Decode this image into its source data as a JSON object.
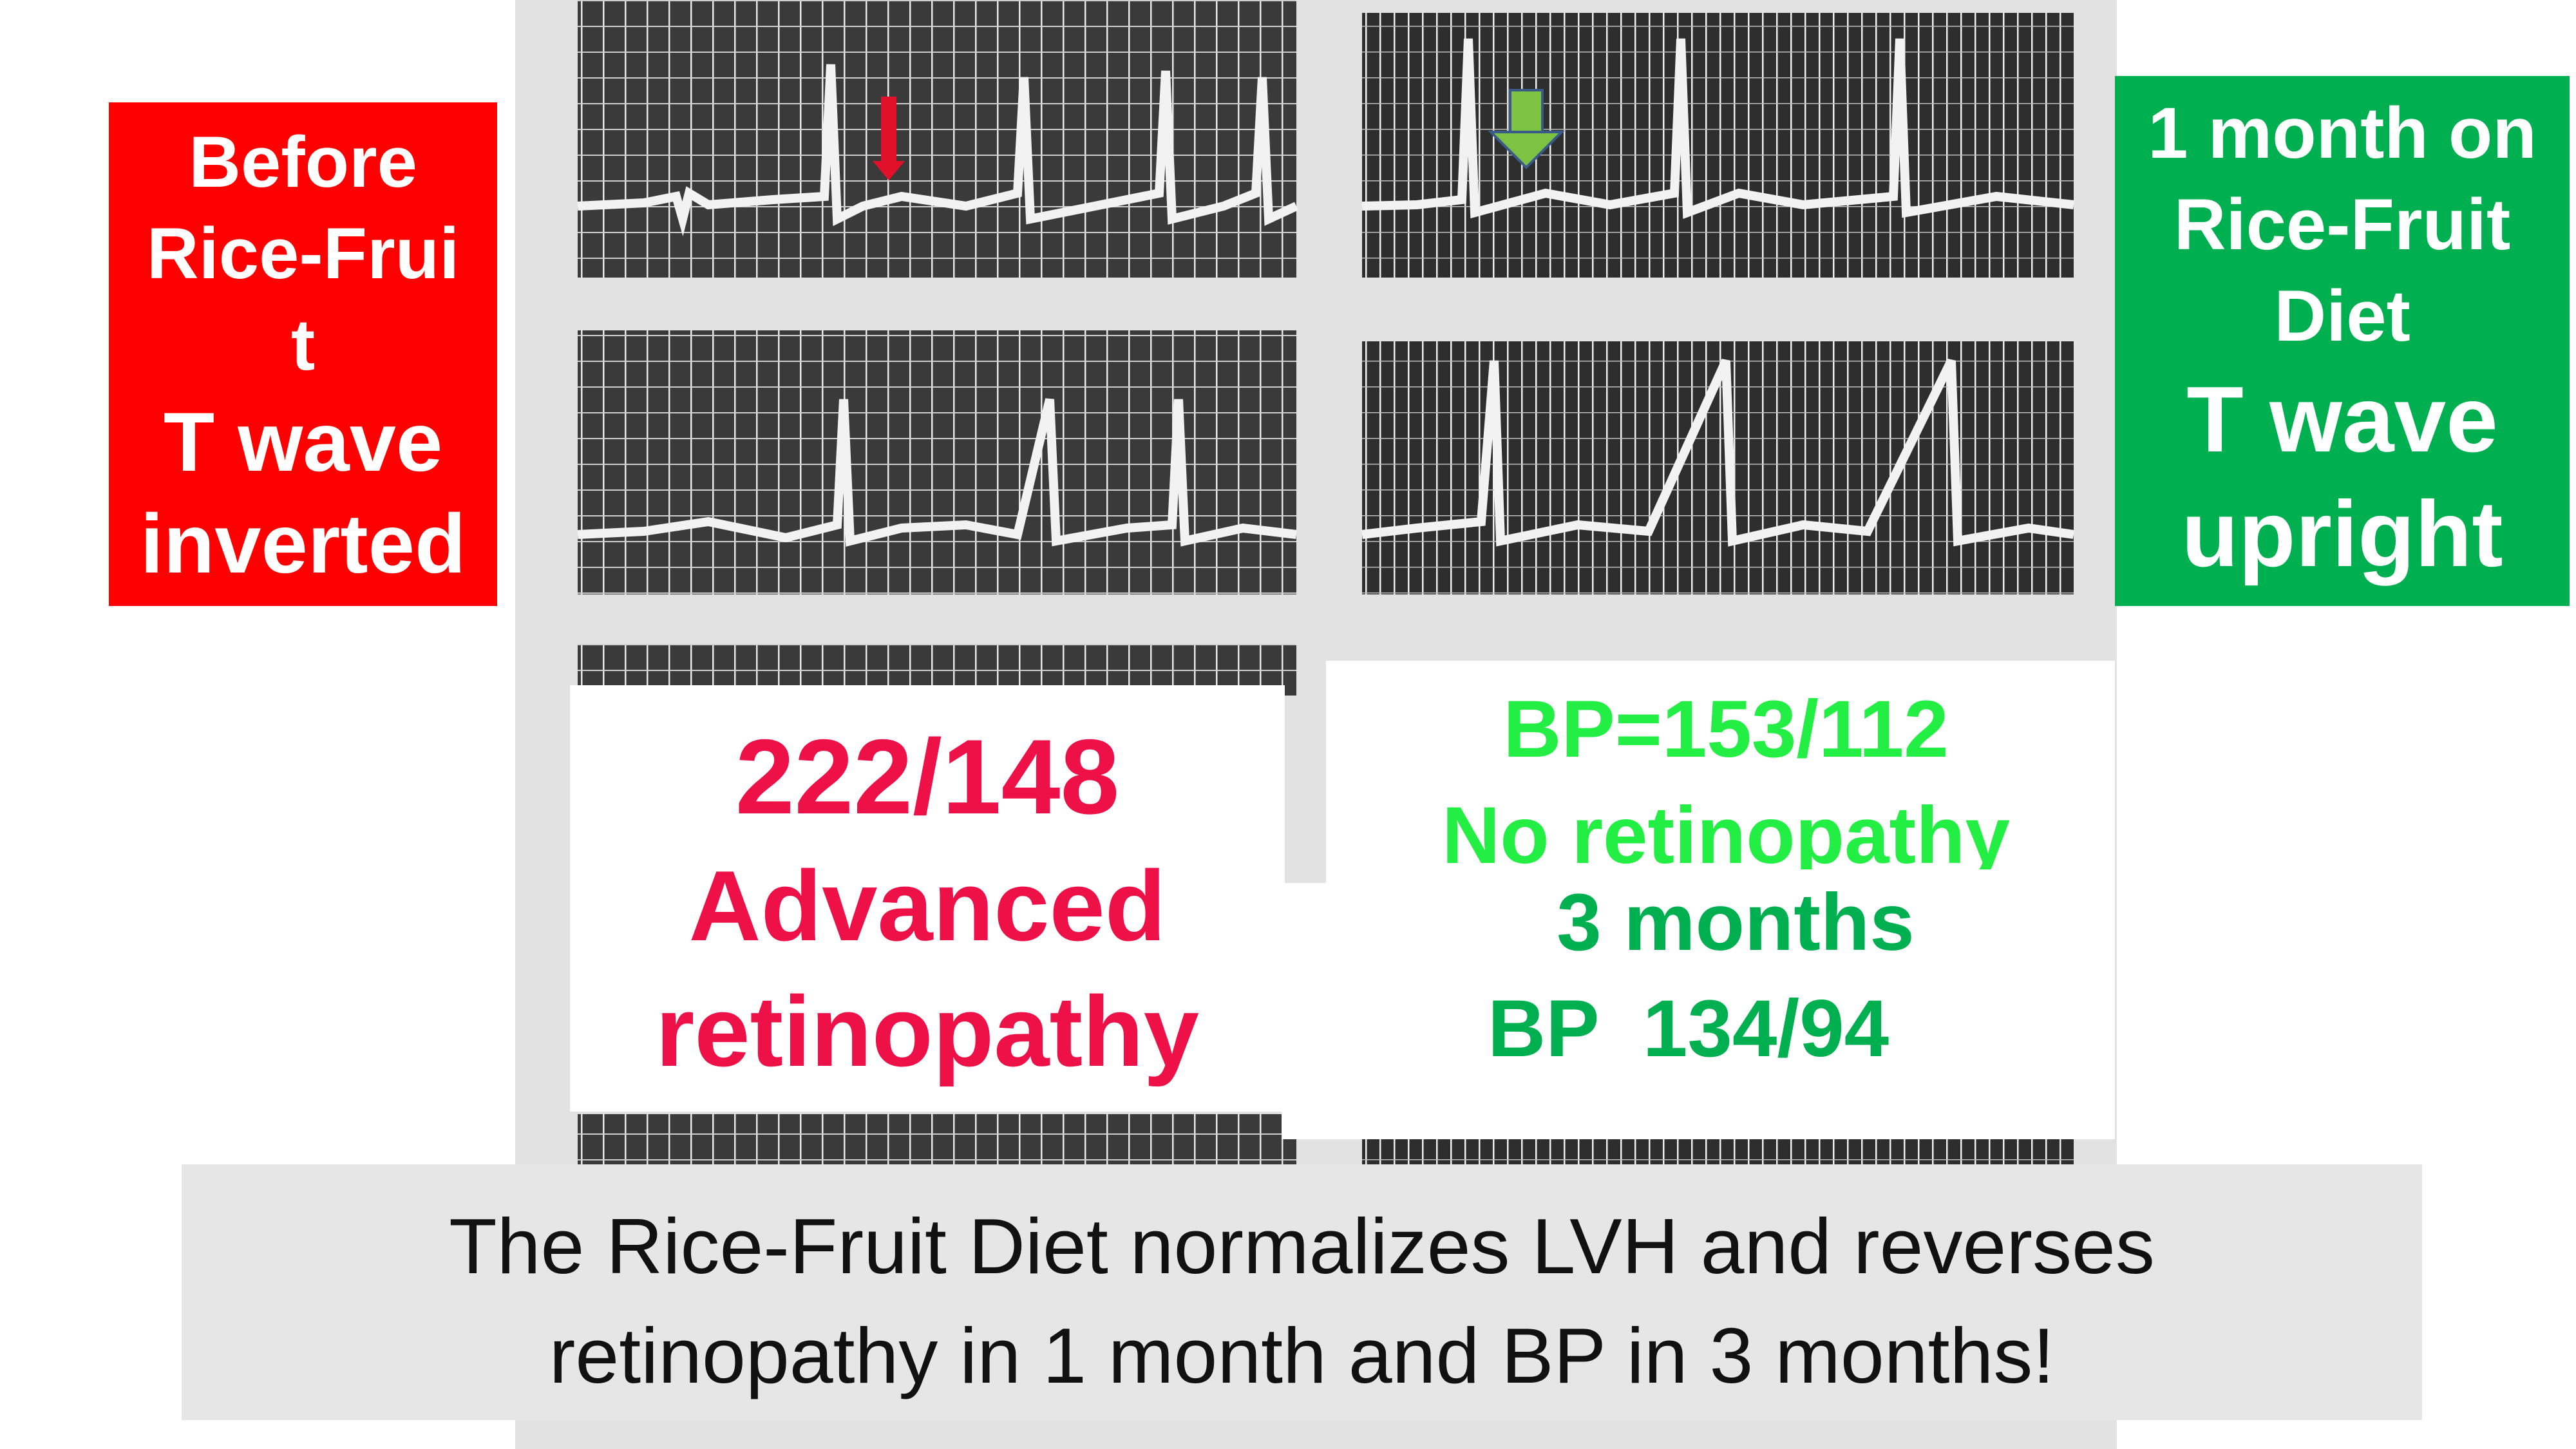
{
  "left_box": {
    "lines": [
      "Before",
      "Rice-Frui",
      "t",
      "T wave",
      "inverted"
    ]
  },
  "right_box": {
    "lines": [
      "1 month on",
      "Rice-Fruit",
      "Diet",
      "T wave",
      "upright"
    ]
  },
  "before_panel": {
    "lines": [
      "222/148",
      "Advanced",
      "retinopathy"
    ]
  },
  "after_panel": {
    "lines": [
      "BP=153/112",
      "No retinopathy",
      "3 months",
      "BP  134/94"
    ]
  },
  "caption": {
    "lines": [
      "The Rice-Fruit Diet normalizes LVH and reverses",
      "retinopathy in 1 month and BP in 3 months!"
    ]
  }
}
